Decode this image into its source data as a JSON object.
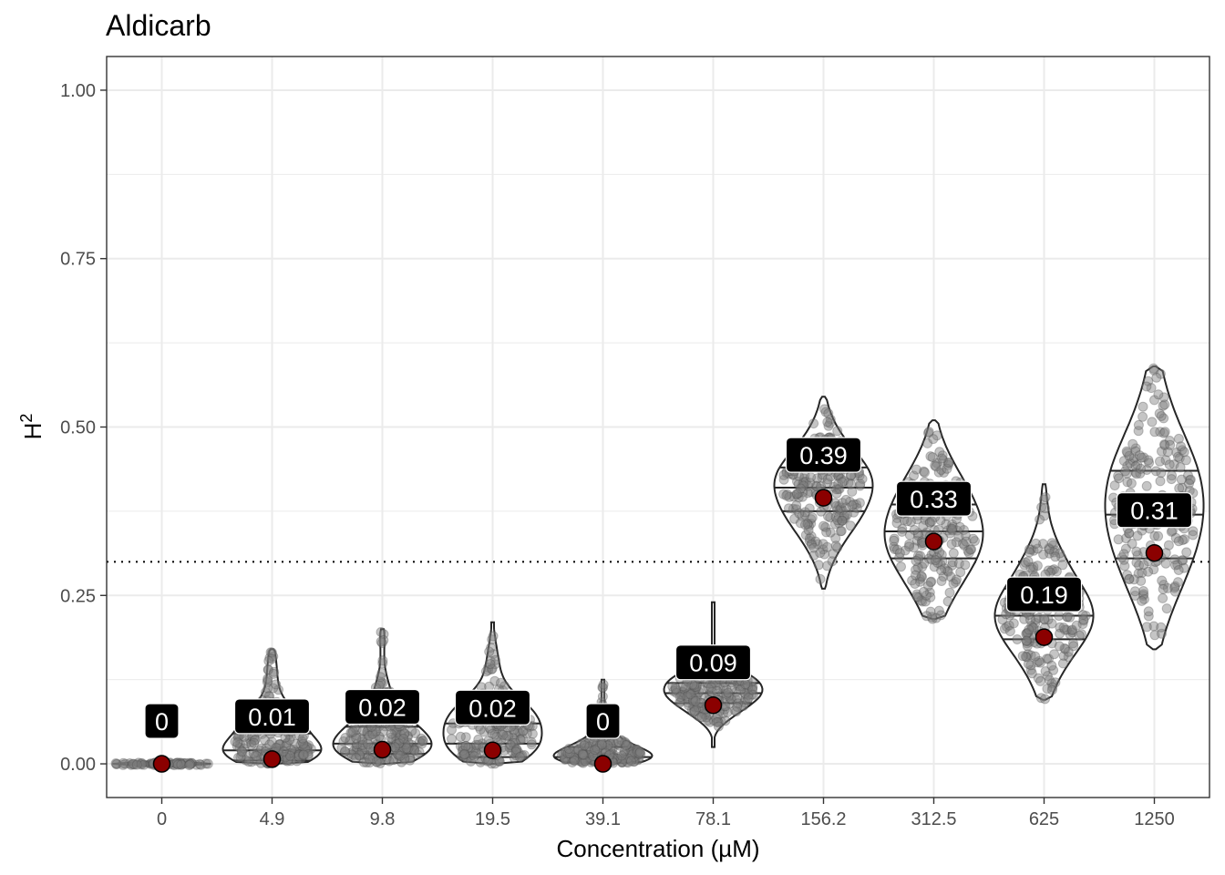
{
  "chart_data": {
    "type": "violin",
    "title": "Aldicarb",
    "xlabel": "Concentration (µM)",
    "ylabel": "H",
    "ylabel_superscript": "2",
    "ylim": [
      -0.05,
      1.05
    ],
    "yticks": [
      "0.00",
      "0.25",
      "0.50",
      "0.75",
      "1.00"
    ],
    "grid": true,
    "threshold": 0.3,
    "categories": [
      "0",
      "4.9",
      "9.8",
      "19.5",
      "39.1",
      "78.1",
      "156.2",
      "312.5",
      "625",
      "1250"
    ],
    "violins": [
      {
        "category": "0",
        "min": 0.0,
        "max": 0.005,
        "q1": 0.0,
        "median": 0.0,
        "q3": 0.002,
        "point_estimate": 0.0,
        "label": "0"
      },
      {
        "category": "4.9",
        "min": 0.0,
        "max": 0.17,
        "q1": 0.005,
        "median": 0.02,
        "q3": 0.045,
        "point_estimate": 0.007,
        "label": "0.01"
      },
      {
        "category": "9.8",
        "min": 0.0,
        "max": 0.2,
        "q1": 0.015,
        "median": 0.03,
        "q3": 0.055,
        "point_estimate": 0.021,
        "label": "0.02"
      },
      {
        "category": "19.5",
        "min": 0.0,
        "max": 0.21,
        "q1": 0.01,
        "median": 0.03,
        "q3": 0.06,
        "point_estimate": 0.02,
        "label": "0.02"
      },
      {
        "category": "39.1",
        "min": 0.0,
        "max": 0.125,
        "q1": 0.003,
        "median": 0.01,
        "q3": 0.025,
        "point_estimate": 0.0,
        "label": "0"
      },
      {
        "category": "78.1",
        "min": 0.025,
        "max": 0.24,
        "q1": 0.09,
        "median": 0.105,
        "q3": 0.12,
        "point_estimate": 0.087,
        "label": "0.09"
      },
      {
        "category": "156.2",
        "min": 0.26,
        "max": 0.545,
        "q1": 0.375,
        "median": 0.41,
        "q3": 0.44,
        "point_estimate": 0.395,
        "label": "0.39"
      },
      {
        "category": "312.5",
        "min": 0.215,
        "max": 0.51,
        "q1": 0.305,
        "median": 0.345,
        "q3": 0.385,
        "point_estimate": 0.33,
        "label": "0.33"
      },
      {
        "category": "625",
        "min": 0.095,
        "max": 0.415,
        "q1": 0.185,
        "median": 0.22,
        "q3": 0.26,
        "point_estimate": 0.188,
        "label": "0.19"
      },
      {
        "category": "1250",
        "min": 0.17,
        "max": 0.59,
        "q1": 0.305,
        "median": 0.37,
        "q3": 0.435,
        "point_estimate": 0.313,
        "label": "0.31"
      }
    ],
    "colors": {
      "violin_outline": "#262626",
      "jitter_point": "#7f7f7f",
      "point_estimate": "#8b0000",
      "label_bg": "#000000",
      "label_text": "#ffffff",
      "grid": "#ebebeb",
      "panel_border": "#333333"
    }
  }
}
